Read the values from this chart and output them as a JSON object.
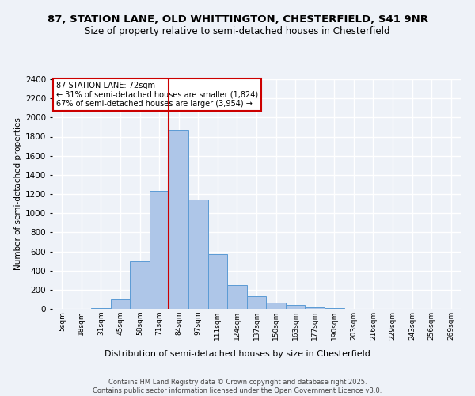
{
  "title_line1": "87, STATION LANE, OLD WHITTINGTON, CHESTERFIELD, S41 9NR",
  "title_line2": "Size of property relative to semi-detached houses in Chesterfield",
  "xlabel": "Distribution of semi-detached houses by size in Chesterfield",
  "ylabel": "Number of semi-detached properties",
  "footnote": "Contains HM Land Registry data © Crown copyright and database right 2025.\nContains public sector information licensed under the Open Government Licence v3.0.",
  "bin_labels": [
    "5sqm",
    "18sqm",
    "31sqm",
    "45sqm",
    "58sqm",
    "71sqm",
    "84sqm",
    "97sqm",
    "111sqm",
    "124sqm",
    "137sqm",
    "150sqm",
    "163sqm",
    "177sqm",
    "190sqm",
    "203sqm",
    "216sqm",
    "229sqm",
    "243sqm",
    "256sqm",
    "269sqm"
  ],
  "bar_values": [
    0,
    2,
    5,
    100,
    500,
    1230,
    1870,
    1140,
    570,
    250,
    130,
    70,
    40,
    15,
    8,
    4,
    2,
    1,
    0,
    0,
    0
  ],
  "bar_color": "#aec6e8",
  "bar_edge_color": "#5b9bd5",
  "marker_label": "87 STATION LANE: 72sqm",
  "annotation_line1": "← 31% of semi-detached houses are smaller (1,824)",
  "annotation_line2": "67% of semi-detached houses are larger (3,954) →",
  "vline_color": "#cc0000",
  "box_edge_color": "#cc0000",
  "vline_x": 5.5,
  "ylim": [
    0,
    2400
  ],
  "yticks": [
    0,
    200,
    400,
    600,
    800,
    1000,
    1200,
    1400,
    1600,
    1800,
    2000,
    2200,
    2400
  ],
  "bg_color": "#eef2f8",
  "grid_color": "#ffffff",
  "title_fontsize": 9.5,
  "subtitle_fontsize": 8.5
}
